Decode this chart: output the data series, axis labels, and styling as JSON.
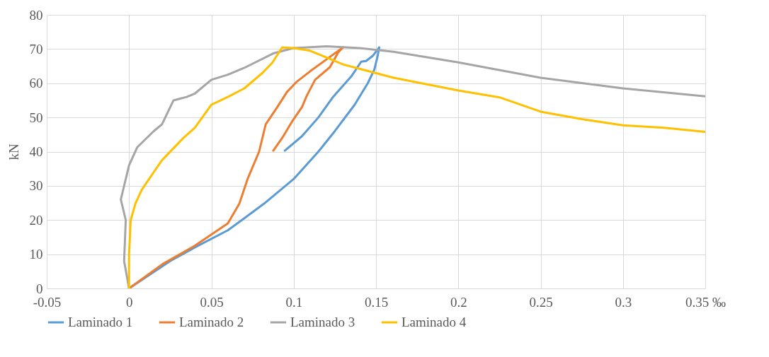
{
  "chart_data": {
    "type": "line",
    "ylabel": "kN",
    "xlim": [
      -0.05,
      0.35
    ],
    "ylim": [
      0,
      80
    ],
    "xticks": [
      -0.05,
      0,
      0.05,
      0.1,
      0.15,
      0.2,
      0.25,
      0.3,
      {
        "value": 0.35,
        "label": "0.35 ‰"
      }
    ],
    "yticks": [
      0,
      10,
      20,
      30,
      40,
      50,
      60,
      70,
      80
    ],
    "grid": true,
    "legend": "bottom",
    "line_style": "solid",
    "series": [
      {
        "name": "Laminado 1",
        "color": "#5b9bd5",
        "x": [
          0,
          0.025,
          0.04,
          0.06,
          0.07,
          0.082,
          0.09,
          0.1,
          0.115,
          0.125,
          0.137,
          0.145,
          0.149,
          0.151,
          0.152,
          0.148,
          0.144,
          0.141,
          0.135,
          0.1236,
          0.115,
          0.105,
          0.0946
        ],
        "values": [
          0,
          8,
          12,
          17,
          20.5,
          24.8,
          28,
          32,
          40,
          46,
          53.7,
          60,
          64,
          68,
          70.5,
          68,
          66.5,
          66.3,
          62,
          55.8,
          50,
          44.5,
          40.3
        ]
      },
      {
        "name": "Laminado 2",
        "color": "#ed7d31",
        "x": [
          0,
          0.02,
          0.04,
          0.06,
          0.067,
          0.072,
          0.079,
          0.083,
          0.09,
          0.096,
          0.102,
          0.11,
          0.12,
          0.13,
          0.127,
          0.122,
          0.113,
          0.108,
          0.105,
          0.099,
          0.093,
          0.0876
        ],
        "values": [
          0,
          7,
          12.5,
          19,
          24.8,
          32,
          40,
          48,
          53,
          57.5,
          60.5,
          63.5,
          67,
          70.5,
          69,
          64.7,
          61,
          56.4,
          53,
          48.8,
          44,
          40.3
        ]
      },
      {
        "name": "Laminado 3",
        "color": "#a5a5a5",
        "x": [
          0,
          -0.003,
          -0.002,
          -0.005,
          -0.003,
          0,
          0.005,
          0.015,
          0.02,
          0.027,
          0.035,
          0.04,
          0.05,
          0.06,
          0.07,
          0.088,
          0.1,
          0.12,
          0.14,
          0.1607,
          0.2,
          0.25,
          0.3,
          0.35
        ],
        "values": [
          0,
          8,
          20,
          26,
          30,
          36,
          41.3,
          46,
          48,
          55,
          56,
          57,
          61,
          62.5,
          64.5,
          68.8,
          70.3,
          70.8,
          70.3,
          69.2,
          66.1,
          61.6,
          58.5,
          56.2
        ]
      },
      {
        "name": "Laminado 4",
        "color": "#ffc000",
        "x": [
          0,
          0,
          0.001,
          0.004,
          0.0078,
          0.015,
          0.02,
          0.033,
          0.04,
          0.05,
          0.06,
          0.07,
          0.081,
          0.087,
          0.093,
          0.1,
          0.11,
          0.12,
          0.13,
          0.1607,
          0.2,
          0.2256,
          0.25,
          0.275,
          0.3,
          0.325,
          0.35
        ],
        "values": [
          0,
          10,
          20,
          25,
          28.9,
          34,
          37.5,
          44,
          47,
          53.7,
          56,
          58.5,
          63,
          66,
          70.5,
          70.3,
          69.5,
          67.5,
          65.5,
          61.6,
          57.9,
          55.8,
          51.7,
          49.5,
          47.7,
          47,
          45.8
        ]
      }
    ]
  }
}
